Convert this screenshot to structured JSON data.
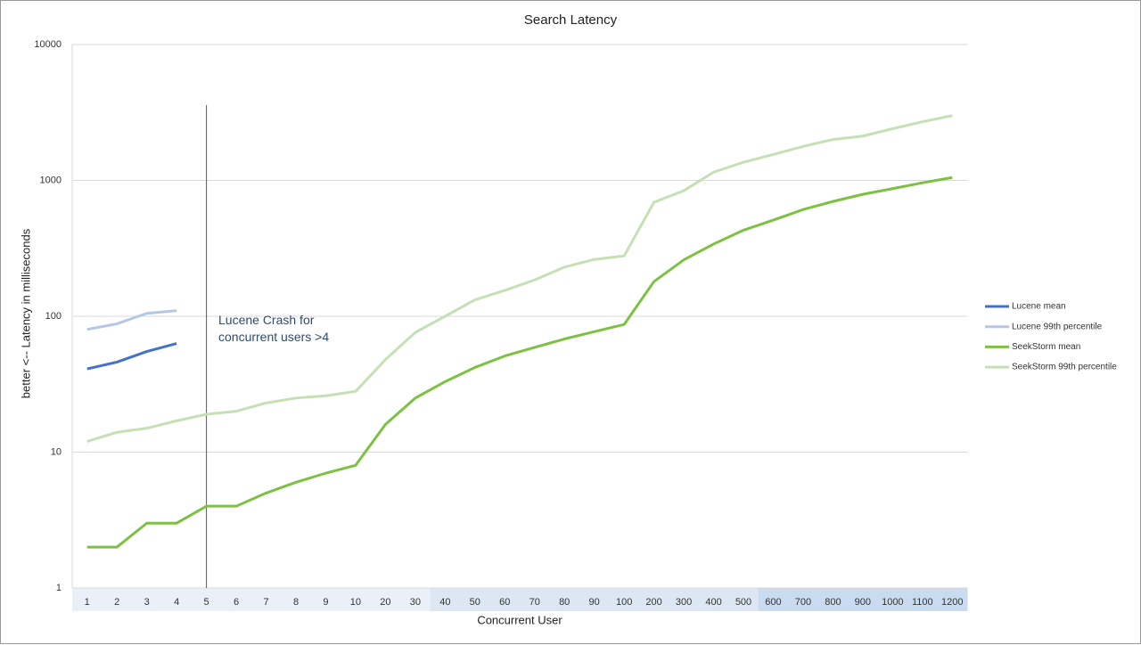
{
  "chart_data": {
    "type": "line",
    "title": "Search Latency",
    "x_label": "Concurrent User",
    "y_label": "better <-- Latency in milliseconds",
    "annotation": "Lucene Crash for concurrent users >4",
    "log_scale": true,
    "grid": true,
    "legend": "right",
    "categories": [
      "1",
      "2",
      "3",
      "4",
      "5",
      "6",
      "7",
      "8",
      "9",
      "10",
      "20",
      "30",
      "40",
      "50",
      "60",
      "70",
      "80",
      "90",
      "100",
      "200",
      "300",
      "400",
      "500",
      "600",
      "700",
      "800",
      "900",
      "1000",
      "1100",
      "1200"
    ],
    "ylim": [
      1,
      10000
    ],
    "yticks": [
      1,
      10,
      100,
      1000,
      10000
    ],
    "series": [
      {
        "name": "Lucene mean",
        "color": "#4472c4",
        "values": [
          41,
          46,
          55,
          63,
          null,
          null,
          null,
          null,
          null,
          null,
          null,
          null,
          null,
          null,
          null,
          null,
          null,
          null,
          null,
          null,
          null,
          null,
          null,
          null,
          null,
          null,
          null,
          null,
          null,
          null
        ]
      },
      {
        "name": "Lucene 99th percentile",
        "color": "#b4c7e7",
        "values": [
          80,
          88,
          105,
          110,
          null,
          null,
          null,
          null,
          null,
          null,
          null,
          null,
          null,
          null,
          null,
          null,
          null,
          null,
          null,
          null,
          null,
          null,
          null,
          null,
          null,
          null,
          null,
          null,
          null,
          null
        ]
      },
      {
        "name": "SeekStorm mean",
        "color": "#7cc142",
        "values": [
          2,
          2,
          3,
          3,
          4,
          4,
          5,
          6,
          7,
          8,
          16,
          25,
          33,
          42,
          51,
          59,
          68,
          77,
          87,
          180,
          260,
          340,
          430,
          510,
          610,
          700,
          790,
          870,
          960,
          1050
        ]
      },
      {
        "name": "SeekStorm 99th percentile",
        "color": "#c5e0b4",
        "values": [
          12,
          14,
          15,
          17,
          19,
          20,
          23,
          25,
          26,
          28,
          48,
          76,
          100,
          132,
          155,
          185,
          230,
          262,
          278,
          690,
          840,
          1150,
          1360,
          1550,
          1780,
          2000,
          2120,
          2400,
          2700,
          3000
        ]
      }
    ]
  }
}
